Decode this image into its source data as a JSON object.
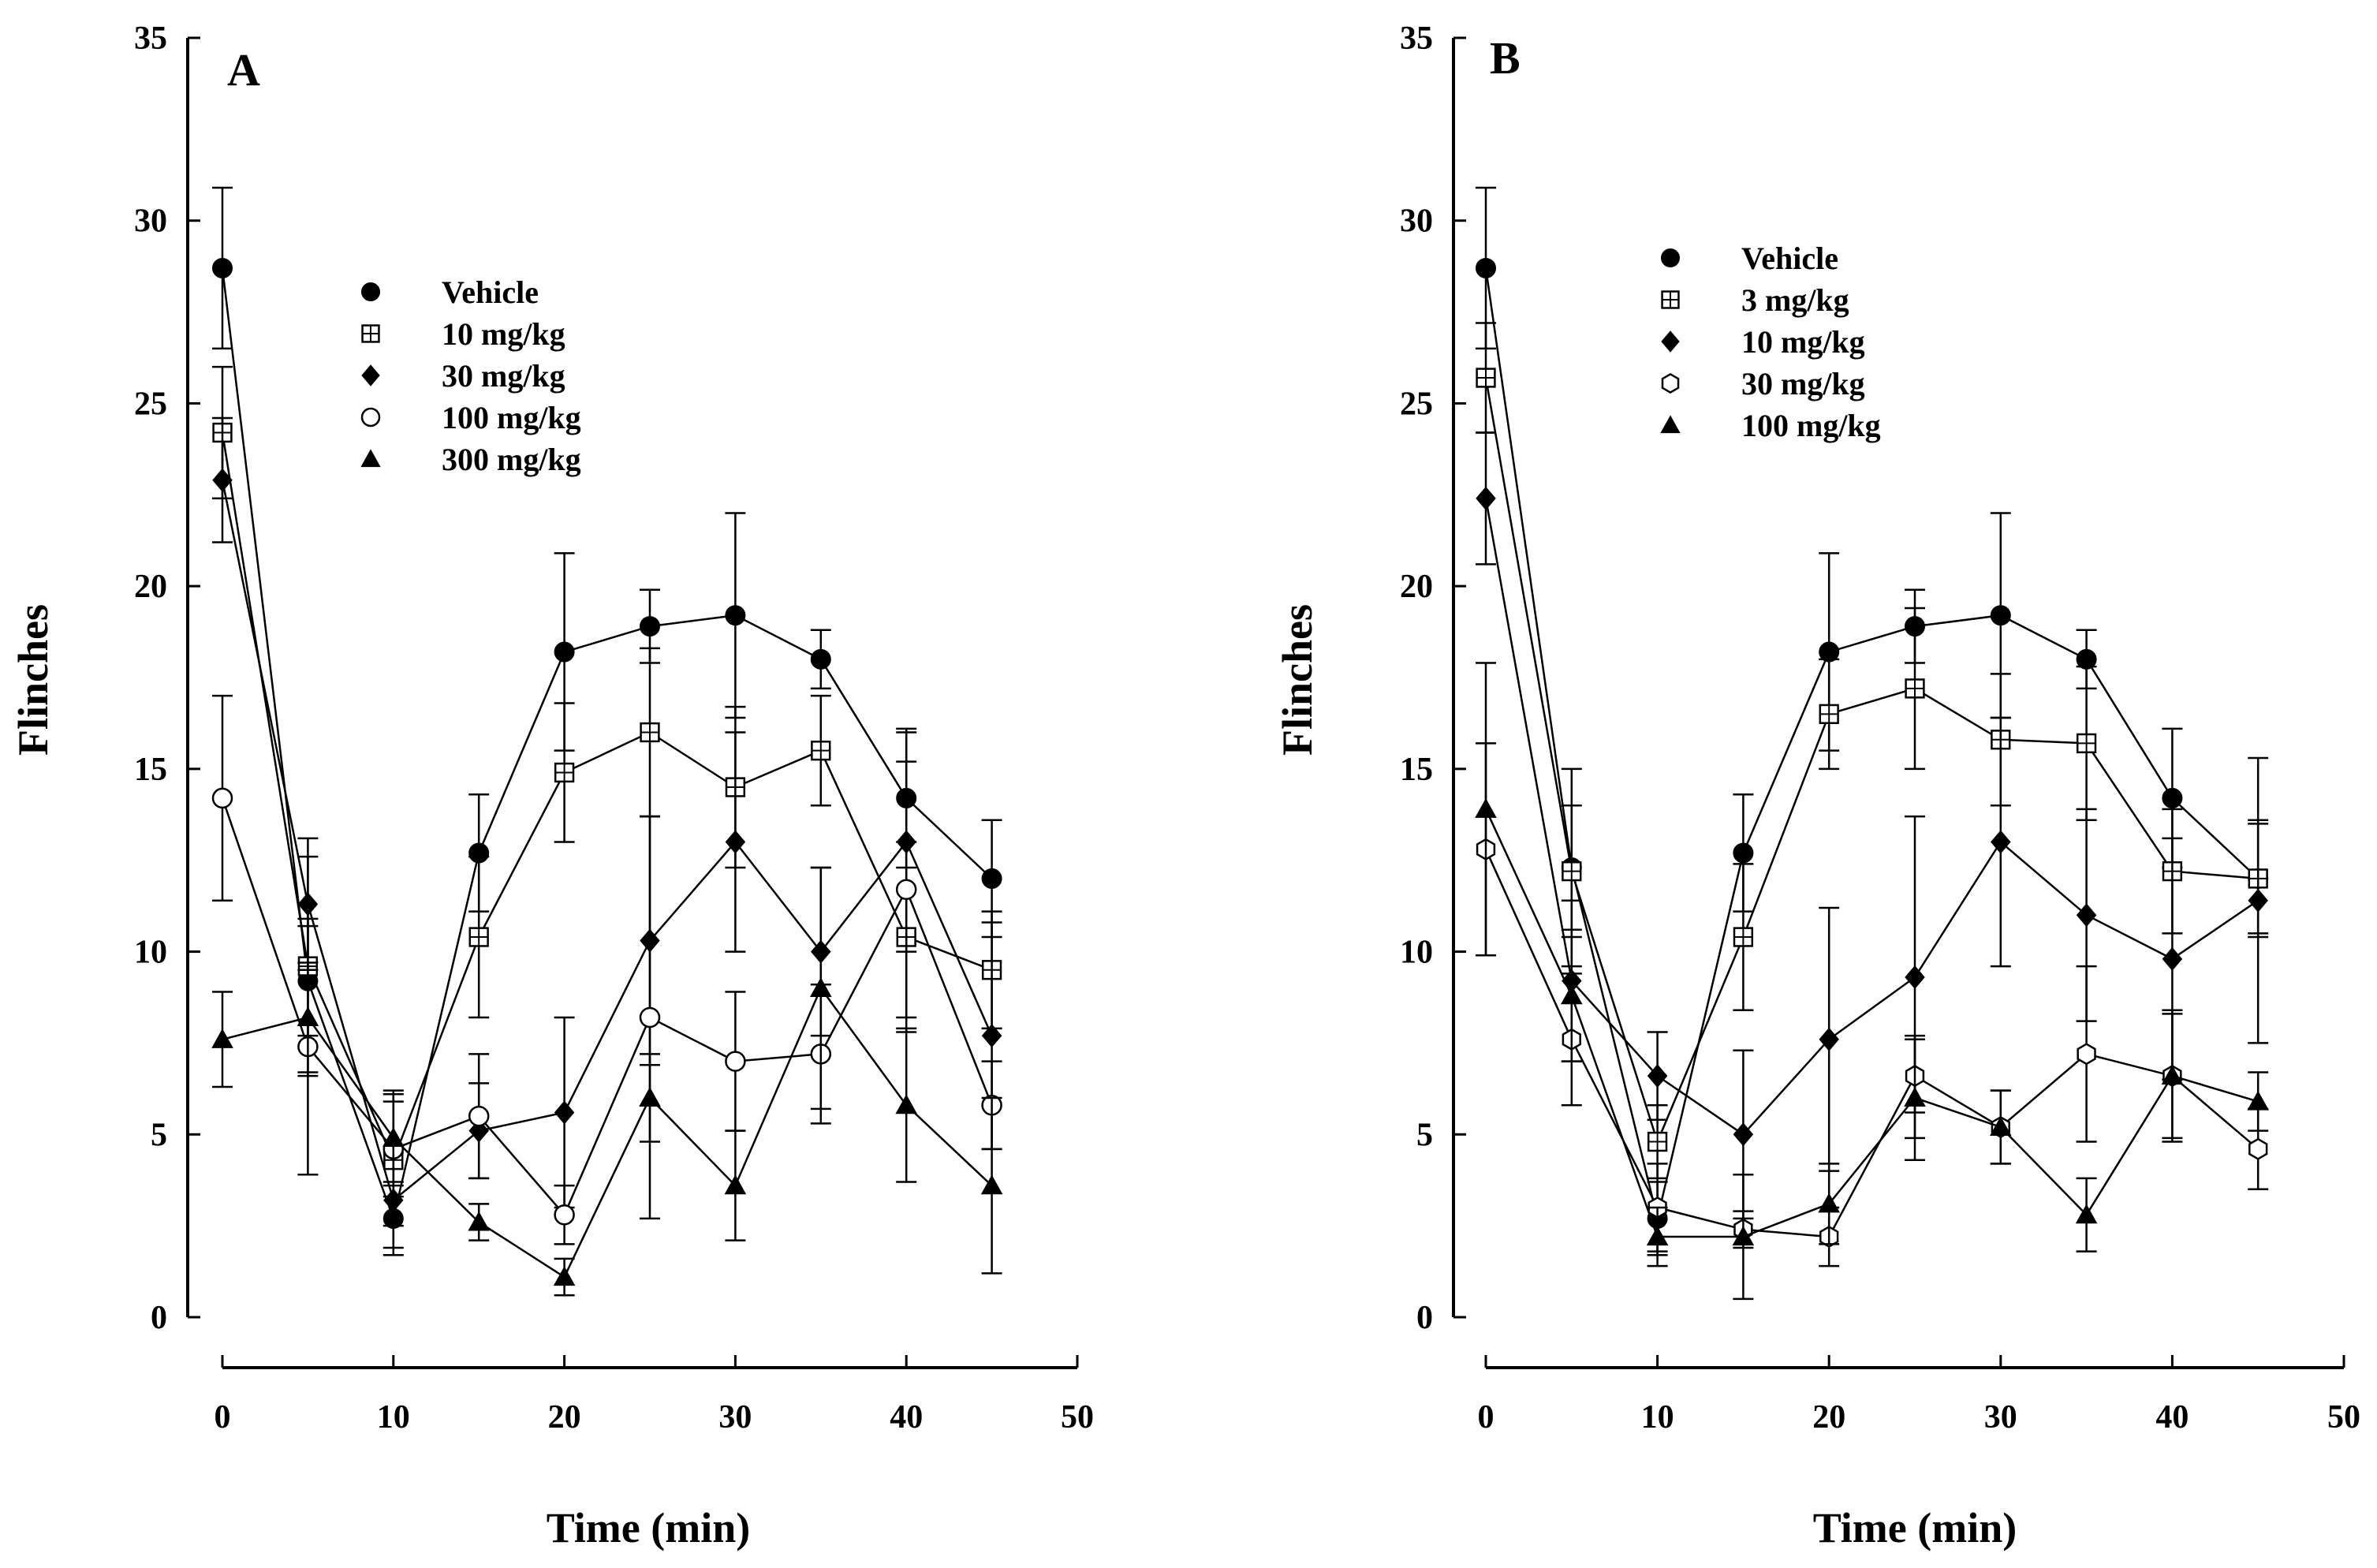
{
  "chart_data": [
    {
      "type": "line",
      "panel_label": "A",
      "xlabel": "Time (min)",
      "ylabel": "Flinches",
      "xlim": [
        0,
        50
      ],
      "ylim": [
        0,
        35
      ],
      "xticks": [
        0,
        10,
        20,
        30,
        40,
        50
      ],
      "yticks": [
        0,
        5,
        10,
        15,
        20,
        25,
        30,
        35
      ],
      "legend_position": "upper-center",
      "x": [
        0,
        5,
        10,
        15,
        20,
        25,
        30,
        35,
        40,
        45
      ],
      "series": [
        {
          "name": "Vehicle",
          "marker": "filled-circle",
          "values": [
            28.7,
            9.2,
            2.7,
            12.7,
            18.2,
            18.9,
            19.2,
            18.0,
            14.2,
            12.0
          ],
          "errors": [
            2.2,
            1.5,
            1.0,
            1.6,
            2.7,
            1.0,
            2.8,
            0.8,
            1.9,
            1.6
          ]
        },
        {
          "name": "10 mg/kg",
          "marker": "square-plus",
          "values": [
            24.2,
            9.6,
            4.3,
            10.4,
            14.9,
            16.0,
            14.5,
            15.5,
            10.4,
            9.5
          ],
          "errors": [
            1.8,
            3.0,
            1.8,
            2.2,
            1.9,
            2.3,
            2.2,
            1.5,
            2.6,
            1.6
          ]
        },
        {
          "name": "30 mg/kg",
          "marker": "filled-diamond",
          "values": [
            22.9,
            11.3,
            3.2,
            5.1,
            5.6,
            10.3,
            13.0,
            10.0,
            13.0,
            7.7
          ],
          "errors": [
            1.7,
            1.8,
            1.3,
            1.3,
            2.6,
            3.4,
            3.0,
            2.3,
            3.0,
            3.1
          ]
        },
        {
          "name": "100 mg/kg",
          "marker": "open-circle",
          "values": [
            14.2,
            7.4,
            4.6,
            5.5,
            2.8,
            8.2,
            7.0,
            7.2,
            11.7,
            5.8
          ],
          "errors": [
            2.8,
            3.5,
            1.3,
            1.7,
            0.8,
            5.5,
            1.9,
            1.9,
            3.5,
            1.2
          ]
        },
        {
          "name": "300 mg/kg",
          "marker": "filled-triangle",
          "values": [
            7.6,
            8.2,
            4.9,
            2.6,
            1.1,
            6.0,
            3.6,
            9.0,
            5.8,
            3.6
          ],
          "errors": [
            1.3,
            1.5,
            1.3,
            0.5,
            0.5,
            1.2,
            1.5,
            3.3,
            2.1,
            2.4
          ]
        }
      ]
    },
    {
      "type": "line",
      "panel_label": "B",
      "xlabel": "Time (min)",
      "ylabel": "Flinches",
      "xlim": [
        0,
        50
      ],
      "ylim": [
        0,
        35
      ],
      "xticks": [
        0,
        10,
        20,
        30,
        40,
        50
      ],
      "yticks": [
        0,
        5,
        10,
        15,
        20,
        25,
        30,
        35
      ],
      "legend_position": "upper-center",
      "x": [
        0,
        5,
        10,
        15,
        20,
        25,
        30,
        35,
        40,
        45
      ],
      "series": [
        {
          "name": "Vehicle",
          "marker": "filled-circle",
          "values": [
            28.7,
            12.3,
            2.7,
            12.7,
            18.2,
            18.9,
            19.2,
            18.0,
            14.2,
            12.0
          ],
          "errors": [
            2.2,
            2.7,
            1.0,
            1.6,
            2.7,
            1.0,
            2.8,
            0.8,
            1.9,
            1.6
          ]
        },
        {
          "name": "3 mg/kg",
          "marker": "square-plus",
          "values": [
            25.7,
            12.2,
            4.8,
            10.4,
            16.5,
            17.2,
            15.8,
            15.7,
            12.2,
            12.0
          ],
          "errors": [
            1.5,
            1.8,
            1.0,
            2.0,
            1.5,
            2.2,
            1.8,
            2.1,
            1.7,
            1.5
          ]
        },
        {
          "name": "10 mg/kg",
          "marker": "filled-diamond",
          "values": [
            22.4,
            9.2,
            6.6,
            5.0,
            7.6,
            9.3,
            13.0,
            11.0,
            9.8,
            11.4
          ],
          "errors": [
            1.8,
            2.2,
            1.2,
            2.3,
            3.6,
            4.4,
            3.4,
            2.9,
            3.3,
            3.9
          ]
        },
        {
          "name": "30 mg/kg",
          "marker": "open-hexagon",
          "values": [
            12.8,
            7.6,
            3.0,
            2.4,
            2.2,
            6.6,
            5.2,
            7.2,
            6.6,
            4.6
          ],
          "errors": [
            2.9,
            1.8,
            1.2,
            0.5,
            0.8,
            1.0,
            1.0,
            2.4,
            1.7,
            1.1
          ]
        },
        {
          "name": "100 mg/kg",
          "marker": "filled-triangle",
          "values": [
            13.9,
            8.8,
            2.2,
            2.2,
            3.1,
            6.0,
            5.2,
            2.8,
            6.6,
            5.9
          ],
          "errors": [
            4.0,
            1.8,
            0.8,
            1.7,
            1.1,
            1.7,
            1.0,
            1.0,
            1.8,
            0.8
          ]
        }
      ]
    }
  ]
}
